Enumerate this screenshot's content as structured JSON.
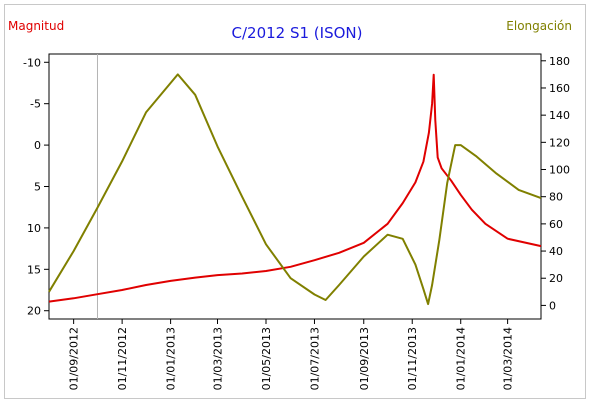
{
  "chart_data": {
    "type": "line",
    "title": "C/2012 S1 (ISON)",
    "ylabel_left": "Magnitud",
    "ylabel_right": "Elongación",
    "left_axis": {
      "ylim": [
        -11,
        21
      ],
      "inverted": true,
      "ticks": [
        -10,
        -5,
        0,
        5,
        10,
        15,
        20
      ],
      "tick_labels": [
        "-10",
        "-5",
        "0",
        "5",
        "10",
        "15",
        "20"
      ]
    },
    "right_axis": {
      "ylim": [
        -10,
        185
      ],
      "ticks": [
        0,
        20,
        40,
        60,
        80,
        100,
        120,
        140,
        160,
        180
      ],
      "tick_labels": [
        "0",
        "20",
        "40",
        "60",
        "80",
        "100",
        "120",
        "140",
        "160",
        "180"
      ]
    },
    "xlim": [
      "2012-08-01",
      "2014-04-12"
    ],
    "x_ticks": [
      "2012-09-01",
      "2012-11-01",
      "2013-01-01",
      "2013-03-01",
      "2013-05-01",
      "2013-07-01",
      "2013-09-01",
      "2013-11-01",
      "2014-01-01",
      "2014-03-01"
    ],
    "x_tick_labels": [
      "01/09/2012",
      "01/11/2012",
      "01/01/2013",
      "01/03/2013",
      "01/05/2013",
      "01/07/2013",
      "01/09/2013",
      "01/11/2013",
      "01/01/2014",
      "01/03/2014"
    ],
    "marker_date": "2012-10-01",
    "grid": false,
    "colors": {
      "magnitude": "#e00000",
      "elongation": "#808000",
      "title": "#1a1adc",
      "marker": "#b4b4b4"
    },
    "series": [
      {
        "axis": "left",
        "color": "#e00000",
        "points": [
          [
            "2012-08-01",
            18.9
          ],
          [
            "2012-09-01",
            18.5
          ],
          [
            "2012-10-01",
            18.0
          ],
          [
            "2012-11-01",
            17.5
          ],
          [
            "2012-12-01",
            16.9
          ],
          [
            "2013-01-01",
            16.4
          ],
          [
            "2013-02-01",
            16.0
          ],
          [
            "2013-03-01",
            15.7
          ],
          [
            "2013-04-01",
            15.5
          ],
          [
            "2013-05-01",
            15.2
          ],
          [
            "2013-06-01",
            14.7
          ],
          [
            "2013-07-01",
            13.9
          ],
          [
            "2013-08-01",
            13.0
          ],
          [
            "2013-09-01",
            11.8
          ],
          [
            "2013-10-01",
            9.5
          ],
          [
            "2013-10-20",
            7.0
          ],
          [
            "2013-11-05",
            4.5
          ],
          [
            "2013-11-15",
            2.0
          ],
          [
            "2013-11-22",
            -1.5
          ],
          [
            "2013-11-26",
            -5.0
          ],
          [
            "2013-11-28",
            -8.5
          ],
          [
            "2013-11-30",
            -3.0
          ],
          [
            "2013-12-03",
            1.5
          ],
          [
            "2013-12-08",
            2.8
          ],
          [
            "2013-12-20",
            4.3
          ],
          [
            "2014-01-01",
            6.0
          ],
          [
            "2014-01-15",
            7.8
          ],
          [
            "2014-02-01",
            9.5
          ],
          [
            "2014-03-01",
            11.3
          ],
          [
            "2014-04-12",
            12.2
          ]
        ]
      },
      {
        "axis": "right",
        "color": "#808000",
        "points": [
          [
            "2012-08-01",
            10
          ],
          [
            "2012-09-01",
            40
          ],
          [
            "2012-10-01",
            72
          ],
          [
            "2012-11-01",
            106
          ],
          [
            "2012-12-01",
            142
          ],
          [
            "2013-01-10",
            170
          ],
          [
            "2013-02-01",
            155
          ],
          [
            "2013-03-01",
            117
          ],
          [
            "2013-04-01",
            80
          ],
          [
            "2013-05-01",
            45
          ],
          [
            "2013-06-01",
            20
          ],
          [
            "2013-07-01",
            8
          ],
          [
            "2013-07-15",
            4
          ],
          [
            "2013-08-01",
            15
          ],
          [
            "2013-09-01",
            36
          ],
          [
            "2013-10-01",
            52
          ],
          [
            "2013-10-20",
            49
          ],
          [
            "2013-11-05",
            30
          ],
          [
            "2013-11-15",
            12
          ],
          [
            "2013-11-21",
            1
          ],
          [
            "2013-11-26",
            15
          ],
          [
            "2013-12-05",
            48
          ],
          [
            "2013-12-15",
            90
          ],
          [
            "2013-12-25",
            118
          ],
          [
            "2014-01-01",
            118
          ],
          [
            "2014-01-20",
            110
          ],
          [
            "2014-02-15",
            97
          ],
          [
            "2014-03-15",
            85
          ],
          [
            "2014-04-12",
            79
          ]
        ]
      }
    ]
  }
}
